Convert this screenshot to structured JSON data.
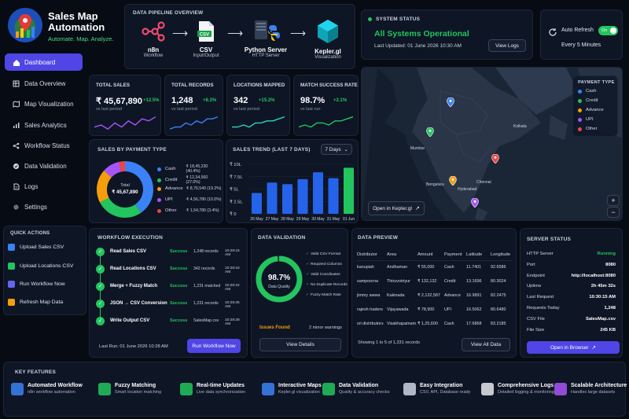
{
  "brand": {
    "title_line1": "Sales Map",
    "title_line2": "Automation",
    "tagline": "Automate. Map. Analyze."
  },
  "sidebar": {
    "items": [
      {
        "label": "Dashboard",
        "icon": "home-icon"
      },
      {
        "label": "Data Overview",
        "icon": "table-icon"
      },
      {
        "label": "Map Visualization",
        "icon": "map-icon"
      },
      {
        "label": "Sales Analytics",
        "icon": "bar-chart-icon"
      },
      {
        "label": "Workflow Status",
        "icon": "workflow-icon"
      },
      {
        "label": "Data Validation",
        "icon": "check-circle-icon"
      },
      {
        "label": "Logs",
        "icon": "document-icon"
      },
      {
        "label": "Settings",
        "icon": "gear-icon"
      }
    ],
    "quick_actions_title": "QUICK ACTIONS",
    "quick_actions": [
      {
        "label": "Upload Sales CSV",
        "color": "#3b82f6"
      },
      {
        "label": "Upload Locations CSV",
        "color": "#22c55e"
      },
      {
        "label": "Run Workflow Now",
        "color": "#6366f1"
      },
      {
        "label": "Refresh Map Data",
        "color": "#f59e0b"
      }
    ]
  },
  "pipeline": {
    "title": "DATA PIPELINE OVERVIEW",
    "steps": [
      {
        "name": "n8n",
        "sub": "Workflow"
      },
      {
        "name": "CSV",
        "sub": "Input/Output",
        "badge": "CSV"
      },
      {
        "name": "Python Server",
        "sub": "HTTP Server"
      },
      {
        "name": "Kepler.gl",
        "sub": "Visualization"
      }
    ]
  },
  "system_status": {
    "title": "SYSTEM STATUS",
    "status": "All Systems Operational",
    "last_updated": "Last Updated: 01 June 2026 10:30 AM",
    "view_logs": "View Logs"
  },
  "auto_refresh": {
    "label": "Auto Refresh",
    "toggle": "On",
    "interval": "Every 5 Minutes"
  },
  "kpis": [
    {
      "label": "TOTAL SALES",
      "value": "₹ 45,67,890",
      "change": "+12.5%",
      "sub": "vs last period",
      "color": "#a855f7"
    },
    {
      "label": "TOTAL RECORDS",
      "value": "1,248",
      "change": "+8.3%",
      "sub": "vs last period",
      "color": "#3b82f6"
    },
    {
      "label": "LOCATIONS MAPPED",
      "value": "342",
      "change": "+15.2%",
      "sub": "vs last period",
      "color": "#2dd4bf"
    },
    {
      "label": "MATCH SUCCESS RATE",
      "value": "98.7%",
      "change": "+2.1%",
      "sub": "vs last run",
      "color": "#22c55e"
    }
  ],
  "map": {
    "legend_title": "PAYMENT TYPE",
    "legend": [
      {
        "label": "Cash",
        "color": "#3b82f6"
      },
      {
        "label": "Credit",
        "color": "#22c55e"
      },
      {
        "label": "Advance",
        "color": "#f59e0b"
      },
      {
        "label": "UPI",
        "color": "#a855f7"
      },
      {
        "label": "Other",
        "color": "#ef4444"
      }
    ],
    "cities": [
      "Kolkata",
      "Mumbai",
      "Hyderabad",
      "Bengaluru",
      "Chennai"
    ],
    "open_button": "Open in Kepler.gl",
    "zoom_in": "+",
    "zoom_out": "−"
  },
  "payment_chart": {
    "title": "SALES BY PAYMENT TYPE",
    "center_label": "Total",
    "center_value": "₹ 45,67,890",
    "chart_data": {
      "type": "pie",
      "categories": [
        "Cash",
        "Credit",
        "Advance",
        "UPI",
        "Other"
      ],
      "values": [
        40.4,
        27.0,
        19.2,
        10.0,
        3.4
      ],
      "amounts": [
        "₹ 18,45,230 (40.4%)",
        "₹ 12,34,560 (27.0%)",
        "₹ 8,76,540 (19.2%)",
        "₹ 4,56,780 (10.0%)",
        "₹ 1,54,780 (3.4%)"
      ],
      "colors": [
        "#3b82f6",
        "#22c55e",
        "#f59e0b",
        "#a855f7",
        "#ef4444"
      ]
    }
  },
  "trend_chart": {
    "title": "SALES TREND (LAST 7 DAYS)",
    "range": "7 Days",
    "chart_data": {
      "type": "bar",
      "categories": [
        "26 May",
        "27 May",
        "28 May",
        "29 May",
        "30 May",
        "31 May",
        "01 Jun"
      ],
      "values": [
        4.2,
        6.3,
        6.0,
        7.0,
        8.4,
        7.2,
        9.3
      ],
      "ylim": [
        0,
        10
      ],
      "yticks": [
        "₹ 10L",
        "₹ 7.5L",
        "₹ 5L",
        "₹ 2.5L",
        "₹ 0"
      ],
      "colors": [
        "#2563eb",
        "#2563eb",
        "#2563eb",
        "#2563eb",
        "#2563eb",
        "#2563eb",
        "#22c55e"
      ]
    }
  },
  "workflow": {
    "title": "WORKFLOW EXECUTION",
    "rows": [
      {
        "name": "Read Sales CSV",
        "status": "Success",
        "detail": "1,248 records",
        "time": "10:28:15 AM"
      },
      {
        "name": "Read Locations CSV",
        "status": "Success",
        "detail": "342 records",
        "time": "10:28:16 AM"
      },
      {
        "name": "Merge + Fuzzy Match",
        "status": "Success",
        "detail": "1,231 matched",
        "time": "10:28:22 AM"
      },
      {
        "name": "JSON → CSV Conversion",
        "status": "Success",
        "detail": "1,231 records",
        "time": "10:28:25 AM"
      },
      {
        "name": "Write Output CSV",
        "status": "Success",
        "detail": "SalesMap.csv",
        "time": "10:28:28 AM"
      }
    ],
    "last_run": "Last Run: 01 June 2026 10:28 AM",
    "run_button": "Run Workflow Now"
  },
  "validation": {
    "title": "DATA VALIDATION",
    "quality_value": "98.7%",
    "quality_label": "Data Quality",
    "quality_fraction": 0.987,
    "checks": [
      "Valid CSV Format",
      "Required Columns",
      "Valid Coordinates",
      "No Duplicate Records",
      "Fuzzy Match Rate"
    ],
    "issues_label": "Issues Found",
    "issues_value": "2 minor warnings",
    "details_button": "View Details"
  },
  "preview": {
    "title": "DATA PREVIEW",
    "columns": [
      "Distributor",
      "Area",
      "Amount",
      "Payment",
      "Latitude",
      "Longitude"
    ],
    "rows": [
      [
        "kanupiah",
        "Andhaman",
        "₹ 55,000",
        "Cash",
        "11.7401",
        "92.6586"
      ],
      [
        "sampoorna",
        "Thiruvotriyur",
        "₹ 132,132",
        "Credit",
        "13.1696",
        "80.3024"
      ],
      [
        "jimmy awwa",
        "Kakinada",
        "₹ 2,132,587",
        "Advance",
        "16.9891",
        "82.2475"
      ],
      [
        "rajesh traders",
        "Vijayawada",
        "₹ 78,900",
        "UPI",
        "16.5062",
        "80.6480"
      ],
      [
        "sri distributors",
        "Visakhapatnam",
        "₹ 1,25,600",
        "Cash",
        "17.6868",
        "83.2185"
      ]
    ],
    "showing": "Showing 1 to 5 of 1,231 records",
    "view_all": "View All Data"
  },
  "server": {
    "title": "SERVER STATUS",
    "rows": [
      {
        "k": "HTTP Server",
        "v": "Running"
      },
      {
        "k": "Port",
        "v": "8080"
      },
      {
        "k": "Endpoint",
        "v": "http://localhost:8080"
      },
      {
        "k": "Uptime",
        "v": "2h 45m 32s"
      },
      {
        "k": "Last Request",
        "v": "10:30:15 AM"
      },
      {
        "k": "Requests Today",
        "v": "1,248"
      },
      {
        "k": "CSV File",
        "v": "SalesMap.csv"
      },
      {
        "k": "File Size",
        "v": "245 KB"
      }
    ],
    "open_button": "Open in Browser"
  },
  "features": {
    "title": "KEY FEATURES",
    "items": [
      {
        "title": "Automated Workflow",
        "sub": "n8n workflow automation",
        "color": "#3b82f6"
      },
      {
        "title": "Fuzzy Matching",
        "sub": "Smart location matching",
        "color": "#22c55e"
      },
      {
        "title": "Real-time Updates",
        "sub": "Live data synchronization",
        "color": "#22c55e"
      },
      {
        "title": "Interactive Maps",
        "sub": "Kepler.gl visualization",
        "color": "#3b82f6"
      },
      {
        "title": "Data Validation",
        "sub": "Quality & accuracy checks",
        "color": "#22c55e"
      },
      {
        "title": "Easy Integration",
        "sub": "CSV, API, Database ready",
        "color": "#cbd5e1"
      },
      {
        "title": "Comprehensive Logs",
        "sub": "Detailed logging & monitoring",
        "color": "#e5e7eb"
      },
      {
        "title": "Scalable Architecture",
        "sub": "Handles large datasets",
        "color": "#a855f7"
      }
    ]
  }
}
